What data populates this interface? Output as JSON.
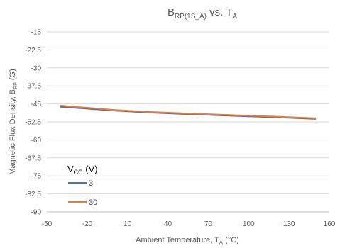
{
  "chart_data": {
    "type": "line",
    "title": {
      "main": "B",
      "main_sub": "RP(1S_A)",
      "mid": " vs. T",
      "mid_sub": "A"
    },
    "xlabel": {
      "pre": "Ambient Temperature, T",
      "sub": "A",
      "post": " (°C)"
    },
    "ylabel": {
      "pre": "Magnetic Flux Density, B",
      "sub": "RP",
      "post": " (G)"
    },
    "xlim": [
      -50,
      160
    ],
    "ylim": [
      -90,
      -15
    ],
    "xticks": [
      "-50",
      "-20",
      "10",
      "40",
      "70",
      "100",
      "130",
      "160"
    ],
    "xtick_values": [
      -50,
      -20,
      10,
      40,
      70,
      100,
      130,
      160
    ],
    "yticks": [
      "-15",
      "-22.5",
      "-30",
      "-37.5",
      "-45",
      "-52.5",
      "-60",
      "-67.5",
      "-75",
      "-82.5",
      "-90"
    ],
    "ytick_values": [
      -15,
      -22.5,
      -30,
      -37.5,
      -45,
      -52.5,
      -60,
      -67.5,
      -75,
      -82.5,
      -90
    ],
    "grid": true,
    "legend": {
      "title_main": "V",
      "title_sub": "CC",
      "title_post": " (V)",
      "placement": "lower-left"
    },
    "series": [
      {
        "name": "3",
        "color": "#4472C4",
        "x": [
          -40,
          -20,
          0,
          25,
          50,
          75,
          100,
          125,
          150
        ],
        "y": [
          -46.2,
          -47.0,
          -47.8,
          -48.6,
          -49.2,
          -49.7,
          -50.2,
          -50.7,
          -51.3
        ]
      },
      {
        "name": "30",
        "color": "#ED7D31",
        "x": [
          -40,
          -20,
          0,
          25,
          50,
          75,
          100,
          125,
          150
        ],
        "y": [
          -45.7,
          -46.6,
          -47.5,
          -48.3,
          -48.9,
          -49.4,
          -49.9,
          -50.4,
          -51.0
        ]
      }
    ]
  }
}
